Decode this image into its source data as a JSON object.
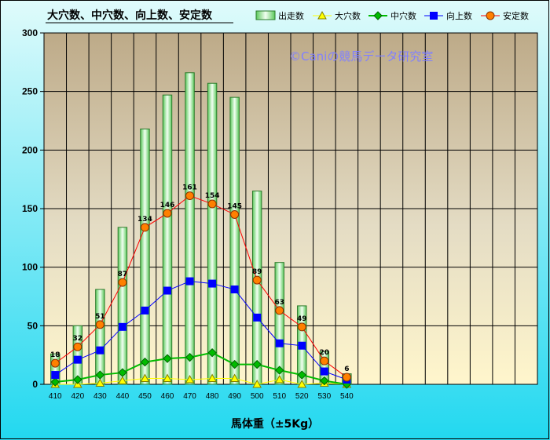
{
  "chart_data": {
    "type": "bar",
    "title": "大穴数、中穴数、向上数、安定数",
    "xlabel": "馬体重（±5Kg）",
    "ylabel": "",
    "ylim": [
      0,
      300
    ],
    "yticks": [
      0,
      50,
      100,
      150,
      200,
      250,
      300
    ],
    "categories": [
      "410",
      "420",
      "430",
      "440",
      "450",
      "460",
      "470",
      "480",
      "490",
      "500",
      "510",
      "520",
      "530",
      "540"
    ],
    "empty_slots_after_data": 8,
    "grid": true,
    "legend_position": "top-right",
    "watermark": "©Caniの競馬データ研究室",
    "series": [
      {
        "name": "出走数",
        "type": "bar",
        "color": "#99ee99",
        "values": [
          26,
          50,
          81,
          134,
          218,
          247,
          266,
          257,
          245,
          165,
          104,
          67,
          28,
          9
        ]
      },
      {
        "name": "大穴数",
        "type": "line",
        "marker": "triangle",
        "color": "#ffff00",
        "values": [
          0,
          0,
          1,
          3,
          5,
          5,
          4,
          5,
          5,
          0,
          4,
          0,
          1,
          0
        ]
      },
      {
        "name": "中穴数",
        "type": "line",
        "marker": "diamond",
        "color": "#00bb00",
        "values": [
          2,
          4,
          8,
          10,
          19,
          22,
          23,
          27,
          17,
          17,
          12,
          8,
          3,
          0
        ]
      },
      {
        "name": "向上数",
        "type": "line",
        "marker": "square",
        "color": "#0000ff",
        "values": [
          8,
          21,
          29,
          49,
          63,
          80,
          88,
          86,
          81,
          57,
          35,
          33,
          11,
          4
        ]
      },
      {
        "name": "安定数",
        "type": "line",
        "marker": "circle",
        "color": "#ff8000",
        "line_color": "#ff0000",
        "values": [
          18,
          32,
          51,
          87,
          134,
          146,
          161,
          154,
          145,
          89,
          63,
          49,
          20,
          6
        ]
      }
    ],
    "data_labels": {
      "series": "安定数",
      "values": [
        "18",
        "32",
        "51",
        "87",
        "134",
        "146",
        "161",
        "154",
        "145",
        "89",
        "63",
        "49",
        "20",
        "6"
      ]
    }
  }
}
